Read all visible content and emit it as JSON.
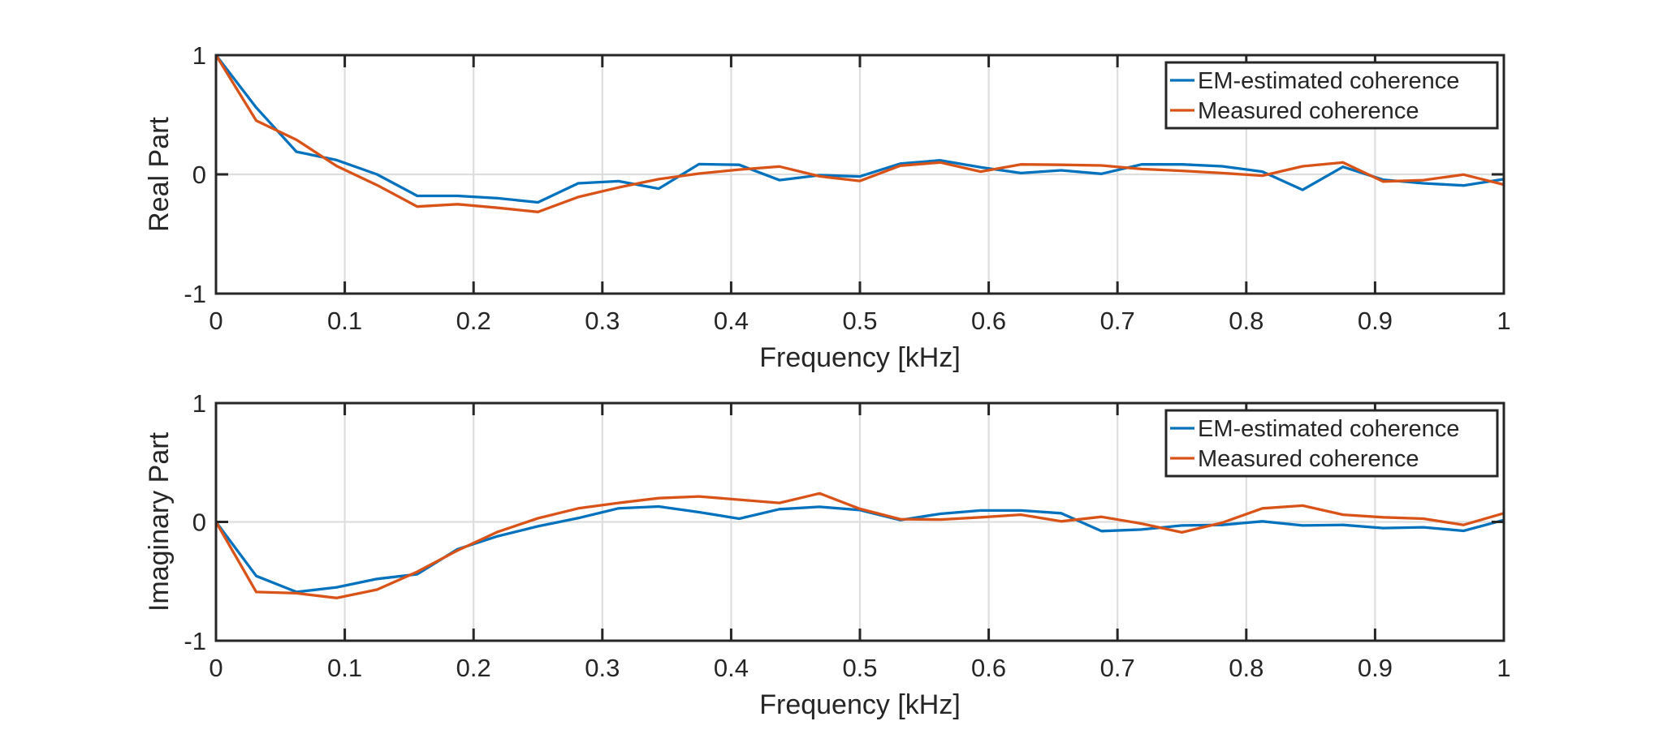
{
  "chart_data": [
    {
      "type": "line",
      "panel": "top",
      "title": "",
      "xlabel": "Frequency [kHz]",
      "ylabel": "Real Part",
      "xlim": [
        0,
        1
      ],
      "ylim": [
        -1,
        1
      ],
      "xticks": [
        0,
        0.1,
        0.2,
        0.3,
        0.4,
        0.5,
        0.6,
        0.7,
        0.8,
        0.9,
        1
      ],
      "xtick_labels": [
        "0",
        "0.1",
        "0.2",
        "0.3",
        "0.4",
        "0.5",
        "0.6",
        "0.7",
        "0.8",
        "0.9",
        "1"
      ],
      "yticks": [
        -1,
        0,
        1
      ],
      "ytick_labels": [
        "-1",
        "0",
        "1"
      ],
      "grid": true,
      "legend_position": "top-right",
      "x": [
        0,
        0.03125,
        0.0625,
        0.09375,
        0.125,
        0.15625,
        0.1875,
        0.21875,
        0.25,
        0.28125,
        0.3125,
        0.34375,
        0.375,
        0.40625,
        0.4375,
        0.46875,
        0.5,
        0.53125,
        0.5625,
        0.59375,
        0.625,
        0.65625,
        0.6875,
        0.71875,
        0.75,
        0.78125,
        0.8125,
        0.84375,
        0.875,
        0.90625,
        0.9375,
        0.96875,
        1
      ],
      "series": [
        {
          "name": "EM-estimated coherence",
          "color": "#0072BD",
          "values": [
            1.0,
            0.56,
            0.19,
            0.12,
            0.0,
            -0.18,
            -0.18,
            -0.2,
            -0.235,
            -0.075,
            -0.057,
            -0.12,
            0.086,
            0.08,
            -0.048,
            -0.007,
            -0.018,
            0.09,
            0.118,
            0.06,
            0.011,
            0.034,
            0.005,
            0.084,
            0.084,
            0.068,
            0.023,
            -0.13,
            0.063,
            -0.045,
            -0.075,
            -0.093,
            -0.04
          ]
        },
        {
          "name": "Measured coherence",
          "color": "#D95319",
          "values": [
            1.0,
            0.45,
            0.29,
            0.07,
            -0.09,
            -0.27,
            -0.25,
            -0.28,
            -0.315,
            -0.19,
            -0.11,
            -0.04,
            0.007,
            0.04,
            0.066,
            -0.016,
            -0.055,
            0.073,
            0.1,
            0.023,
            0.084,
            0.08,
            0.075,
            0.045,
            0.03,
            0.011,
            -0.011,
            0.068,
            0.1,
            -0.06,
            -0.048,
            -0.002,
            -0.086
          ]
        }
      ]
    },
    {
      "type": "line",
      "panel": "bottom",
      "title": "",
      "xlabel": "Frequency [kHz]",
      "ylabel": "Imaginary Part",
      "xlim": [
        0,
        1
      ],
      "ylim": [
        -1,
        1
      ],
      "xticks": [
        0,
        0.1,
        0.2,
        0.3,
        0.4,
        0.5,
        0.6,
        0.7,
        0.8,
        0.9,
        1
      ],
      "xtick_labels": [
        "0",
        "0.1",
        "0.2",
        "0.3",
        "0.4",
        "0.5",
        "0.6",
        "0.7",
        "0.8",
        "0.9",
        "1"
      ],
      "yticks": [
        -1,
        0,
        1
      ],
      "ytick_labels": [
        "-1",
        "0",
        "1"
      ],
      "grid": true,
      "legend_position": "top-right",
      "x": [
        0,
        0.03125,
        0.0625,
        0.09375,
        0.125,
        0.15625,
        0.1875,
        0.21875,
        0.25,
        0.28125,
        0.3125,
        0.34375,
        0.375,
        0.40625,
        0.4375,
        0.46875,
        0.5,
        0.53125,
        0.5625,
        0.59375,
        0.625,
        0.65625,
        0.6875,
        0.71875,
        0.75,
        0.78125,
        0.8125,
        0.84375,
        0.875,
        0.90625,
        0.9375,
        0.96875,
        1
      ],
      "series": [
        {
          "name": "EM-estimated coherence",
          "color": "#0072BD",
          "values": [
            0.0,
            -0.455,
            -0.59,
            -0.55,
            -0.48,
            -0.44,
            -0.23,
            -0.12,
            -0.037,
            0.032,
            0.114,
            0.13,
            0.082,
            0.027,
            0.107,
            0.127,
            0.1,
            0.016,
            0.068,
            0.096,
            0.096,
            0.073,
            -0.077,
            -0.064,
            -0.03,
            -0.025,
            0.005,
            -0.03,
            -0.025,
            -0.052,
            -0.045,
            -0.075,
            0.016
          ]
        },
        {
          "name": "Measured coherence",
          "color": "#D95319",
          "values": [
            0.0,
            -0.59,
            -0.6,
            -0.64,
            -0.57,
            -0.42,
            -0.24,
            -0.084,
            0.031,
            0.114,
            0.16,
            0.2,
            0.214,
            0.187,
            0.16,
            0.24,
            0.11,
            0.023,
            0.02,
            0.039,
            0.061,
            0.005,
            0.043,
            -0.014,
            -0.088,
            -0.007,
            0.114,
            0.137,
            0.061,
            0.039,
            0.027,
            -0.025,
            0.073
          ]
        }
      ]
    }
  ]
}
